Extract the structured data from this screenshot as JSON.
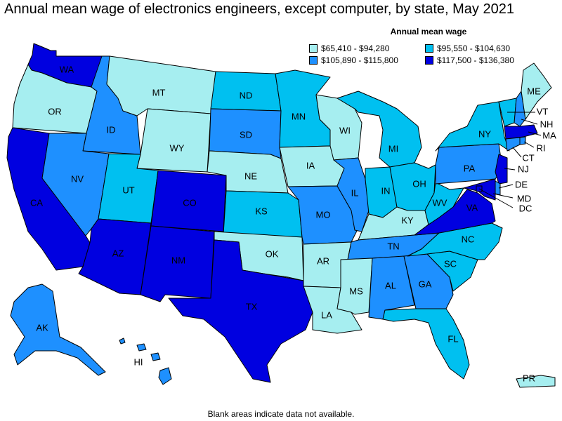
{
  "title": "Annual mean wage of electronics engineers, except computer, by state, May 2021",
  "legend": {
    "title": "Annual mean wage",
    "items": [
      {
        "label": "$65,410 - $94,280",
        "color": "#a6eef0"
      },
      {
        "label": "$95,550 - $104,630",
        "color": "#00c0f0"
      },
      {
        "label": "$105,890 - $115,800",
        "color": "#1e90ff"
      },
      {
        "label": "$117,500 - $136,380",
        "color": "#0000e0"
      }
    ]
  },
  "footnote": "Blank areas indicate data not available.",
  "states": {
    "WA": {
      "label": "WA",
      "tier": 3
    },
    "OR": {
      "label": "OR",
      "tier": 0
    },
    "CA": {
      "label": "CA",
      "tier": 3
    },
    "ID": {
      "label": "ID",
      "tier": 2
    },
    "NV": {
      "label": "NV",
      "tier": 2
    },
    "MT": {
      "label": "MT",
      "tier": 0
    },
    "WY": {
      "label": "WY",
      "tier": 0
    },
    "UT": {
      "label": "UT",
      "tier": 1
    },
    "AZ": {
      "label": "AZ",
      "tier": 3
    },
    "CO": {
      "label": "CO",
      "tier": 3
    },
    "NM": {
      "label": "NM",
      "tier": 3
    },
    "ND": {
      "label": "ND",
      "tier": 1
    },
    "SD": {
      "label": "SD",
      "tier": 2
    },
    "NE": {
      "label": "NE",
      "tier": 0
    },
    "KS": {
      "label": "KS",
      "tier": 1
    },
    "OK": {
      "label": "OK",
      "tier": 0
    },
    "TX": {
      "label": "TX",
      "tier": 3
    },
    "MN": {
      "label": "MN",
      "tier": 1
    },
    "IA": {
      "label": "IA",
      "tier": 0
    },
    "MO": {
      "label": "MO",
      "tier": 2
    },
    "AR": {
      "label": "AR",
      "tier": 0
    },
    "LA": {
      "label": "LA",
      "tier": 0
    },
    "WI": {
      "label": "WI",
      "tier": 0
    },
    "IL": {
      "label": "IL",
      "tier": 2
    },
    "MI": {
      "label": "MI",
      "tier": 1
    },
    "IN": {
      "label": "IN",
      "tier": 1
    },
    "OH": {
      "label": "OH",
      "tier": 1
    },
    "KY": {
      "label": "KY",
      "tier": 0
    },
    "TN": {
      "label": "TN",
      "tier": 2
    },
    "MS": {
      "label": "MS",
      "tier": 0
    },
    "AL": {
      "label": "AL",
      "tier": 2
    },
    "GA": {
      "label": "GA",
      "tier": 2
    },
    "FL": {
      "label": "FL",
      "tier": 1
    },
    "SC": {
      "label": "SC",
      "tier": 1
    },
    "NC": {
      "label": "NC",
      "tier": 1
    },
    "VA": {
      "label": "VA",
      "tier": 3
    },
    "WV": {
      "label": "WV",
      "tier": 1
    },
    "PA": {
      "label": "PA",
      "tier": 2
    },
    "NY": {
      "label": "NY",
      "tier": 1
    },
    "VT": {
      "label": "VT",
      "tier": 1
    },
    "NH": {
      "label": "NH",
      "tier": 2
    },
    "ME": {
      "label": "ME",
      "tier": 0
    },
    "MA": {
      "label": "MA",
      "tier": 3
    },
    "RI": {
      "label": "RI",
      "tier": 2
    },
    "CT": {
      "label": "CT",
      "tier": 2
    },
    "NJ": {
      "label": "NJ",
      "tier": 3
    },
    "DE": {
      "label": "DE",
      "tier": 2
    },
    "MD": {
      "label": "MD",
      "tier": 3
    },
    "DC": {
      "label": "DC",
      "tier": 3
    },
    "AK": {
      "label": "AK",
      "tier": 2
    },
    "HI": {
      "label": "HI",
      "tier": 2
    },
    "PR": {
      "label": "PR",
      "tier": 0
    }
  }
}
